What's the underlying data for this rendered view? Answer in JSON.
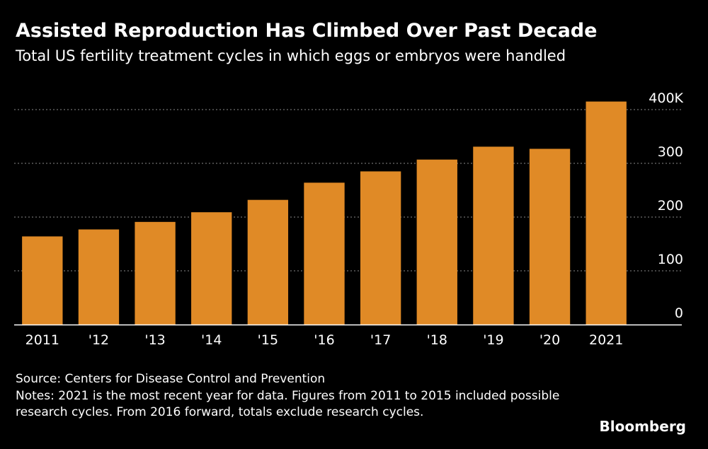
{
  "header": {
    "title": "Assisted Reproduction Has Climbed Over Past Decade",
    "subtitle": "Total US fertility treatment cycles in which eggs or embryos were handled"
  },
  "footer": {
    "source": "Source: Centers for Disease Control and Prevention",
    "notes": "Notes: 2021 is the most recent year for data. Figures from 2011 to 2015 included possible research cycles. From 2016 forward, totals exclude research cycles.",
    "brand": "Bloomberg"
  },
  "colors": {
    "background": "#000000",
    "bar": "#e08a26",
    "text": "#ffffff",
    "gridline": "#8a8a8a"
  },
  "chart_data": {
    "type": "bar",
    "title": "Assisted Reproduction Has Climbed Over Past Decade",
    "subtitle": "Total US fertility treatment cycles in which eggs or embryos were handled",
    "xlabel": "",
    "ylabel": "",
    "categories": [
      "2011",
      "'12",
      "'13",
      "'14",
      "'15",
      "'16",
      "'17",
      "'18",
      "'19",
      "'20",
      "2021"
    ],
    "values": [
      164,
      177,
      191,
      209,
      232,
      264,
      285,
      307,
      331,
      327,
      415
    ],
    "ylim": [
      0,
      400
    ],
    "yticks": [
      0,
      100,
      200,
      300,
      400
    ],
    "ytick_labels": [
      "0",
      "100",
      "200",
      "300",
      "400K"
    ],
    "y_axis_side": "right",
    "grid": true,
    "legend": "none"
  }
}
